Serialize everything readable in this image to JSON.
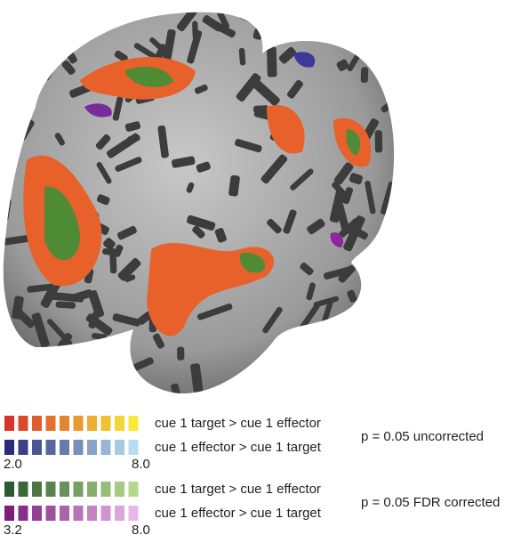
{
  "legend": {
    "groups": [
      {
        "rows": [
          "cue 1 target > cue 1 effector",
          "cue 1 effector > cue 1 target"
        ],
        "min": "2.0",
        "max": "8.0",
        "threshold": "p = 0.05 uncorrected"
      },
      {
        "rows": [
          "cue 1 target > cue 1 effector",
          "cue 1 effector > cue 1 target"
        ],
        "min": "3.2",
        "max": "8.0",
        "threshold": "p = 0.05 FDR corrected"
      }
    ]
  }
}
